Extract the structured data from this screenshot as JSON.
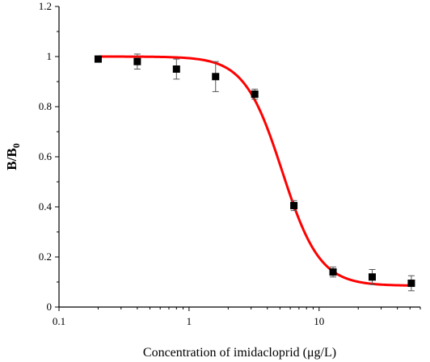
{
  "chart_data": {
    "type": "scatter",
    "xlabel": "Concentration of imidacloprid (μg/L)",
    "ylabel": {
      "main": "B/B",
      "subscript": "0"
    },
    "x_scale": "log",
    "xlim": [
      0.1,
      60
    ],
    "ylim": [
      0,
      1.2
    ],
    "x_ticks": [
      0.1,
      1,
      10
    ],
    "x_tick_labels": [
      "0.1",
      "1",
      "10"
    ],
    "y_ticks": [
      0,
      0.2,
      0.4,
      0.6,
      0.8,
      1.0,
      1.2
    ],
    "y_tick_labels": [
      "0",
      "0.2",
      "0.4",
      "0.6",
      "0.8",
      "1",
      "1.2"
    ],
    "series": [
      {
        "kind": "points_with_error_bars",
        "color": "#000000",
        "marker": "square",
        "x": [
          0.2,
          0.4,
          0.8,
          1.6,
          3.2,
          6.4,
          12.8,
          25.6,
          51.2
        ],
        "y": [
          0.99,
          0.98,
          0.95,
          0.92,
          0.85,
          0.405,
          0.14,
          0.12,
          0.095
        ],
        "error": [
          0.005,
          0.03,
          0.04,
          0.06,
          0.02,
          0.02,
          0.02,
          0.03,
          0.03
        ]
      },
      {
        "kind": "fitted_curve",
        "color": "#ff0000",
        "model": "four_parameter_logistic",
        "top": 1.0,
        "bottom": 0.085,
        "ic50": 5.2,
        "hill": 3.0
      }
    ],
    "grid": false,
    "legend": "none"
  }
}
